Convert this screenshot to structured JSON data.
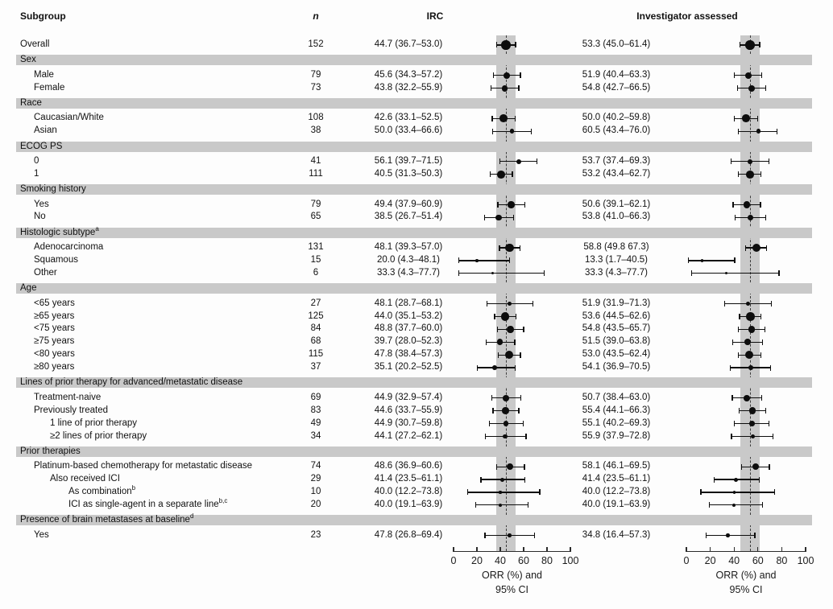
{
  "header": {
    "subgroup": "Subgroup",
    "n": "n",
    "irc": "IRC",
    "investigator": "Investigator assessed"
  },
  "axis": {
    "caption_line1": "ORR (%) and",
    "caption_line2": "95% CI"
  },
  "colors": {
    "section_bar": "#c9c9c9",
    "overall_ci_band": "#c9c9c9",
    "marker": "#0d0d0d",
    "reference_line": "#3c3c3c"
  },
  "chart_data": {
    "type": "forest",
    "panels": [
      "IRC",
      "Investigator assessed"
    ],
    "x_axis": {
      "range": [
        0,
        100
      ],
      "ticks": [
        0,
        20,
        40,
        60,
        80,
        100
      ],
      "label": "ORR (%) and 95% CI"
    },
    "shaded_band_meaning": "Overall 95% CI",
    "reference_line_meaning": "Overall ORR estimate (dashed)",
    "rows": [
      {
        "t": "data",
        "label": "Overall",
        "indent": 0,
        "n": "152",
        "irc": {
          "text": "44.7 (36.7–53.0)",
          "est": 44.7,
          "lo": 36.7,
          "hi": 53.0
        },
        "inv": {
          "text": "53.3 (45.0–61.4)",
          "est": 53.3,
          "lo": 45.0,
          "hi": 61.4
        }
      },
      {
        "t": "section",
        "label": "Sex"
      },
      {
        "t": "data",
        "label": "Male",
        "indent": 1,
        "n": "79",
        "irc": {
          "text": "45.6 (34.3–57.2)",
          "est": 45.6,
          "lo": 34.3,
          "hi": 57.2
        },
        "inv": {
          "text": "51.9 (40.4–63.3)",
          "est": 51.9,
          "lo": 40.4,
          "hi": 63.3
        }
      },
      {
        "t": "data",
        "label": "Female",
        "indent": 1,
        "n": "73",
        "irc": {
          "text": "43.8 (32.2–55.9)",
          "est": 43.8,
          "lo": 32.2,
          "hi": 55.9
        },
        "inv": {
          "text": "54.8 (42.7–66.5)",
          "est": 54.8,
          "lo": 42.7,
          "hi": 66.5
        }
      },
      {
        "t": "section",
        "label": "Race"
      },
      {
        "t": "data",
        "label": "Caucasian/White",
        "indent": 1,
        "n": "108",
        "irc": {
          "text": "42.6 (33.1–52.5)",
          "est": 42.6,
          "lo": 33.1,
          "hi": 52.5
        },
        "inv": {
          "text": "50.0 (40.2–59.8)",
          "est": 50.0,
          "lo": 40.2,
          "hi": 59.8
        }
      },
      {
        "t": "data",
        "label": "Asian",
        "indent": 1,
        "n": "38",
        "irc": {
          "text": "50.0 (33.4–66.6)",
          "est": 50.0,
          "lo": 33.4,
          "hi": 66.6
        },
        "inv": {
          "text": "60.5 (43.4–76.0)",
          "est": 60.5,
          "lo": 43.4,
          "hi": 76.0
        }
      },
      {
        "t": "section",
        "label": "ECOG PS"
      },
      {
        "t": "data",
        "label": "0",
        "indent": 1,
        "n": "41",
        "irc": {
          "text": "56.1 (39.7–71.5)",
          "est": 56.1,
          "lo": 39.7,
          "hi": 71.5
        },
        "inv": {
          "text": "53.7 (37.4–69.3)",
          "est": 53.7,
          "lo": 37.4,
          "hi": 69.3
        }
      },
      {
        "t": "data",
        "label": "1",
        "indent": 1,
        "n": "111",
        "irc": {
          "text": "40.5 (31.3–50.3)",
          "est": 40.5,
          "lo": 31.3,
          "hi": 50.3
        },
        "inv": {
          "text": "53.2 (43.4–62.7)",
          "est": 53.2,
          "lo": 43.4,
          "hi": 62.7
        }
      },
      {
        "t": "section",
        "label": "Smoking history"
      },
      {
        "t": "data",
        "label": "Yes",
        "indent": 1,
        "n": "79",
        "irc": {
          "text": "49.4 (37.9–60.9)",
          "est": 49.4,
          "lo": 37.9,
          "hi": 60.9
        },
        "inv": {
          "text": "50.6 (39.1–62.1)",
          "est": 50.6,
          "lo": 39.1,
          "hi": 62.1
        }
      },
      {
        "t": "data",
        "label": "No",
        "indent": 1,
        "n": "65",
        "irc": {
          "text": "38.5 (26.7–51.4)",
          "est": 38.5,
          "lo": 26.7,
          "hi": 51.4
        },
        "inv": {
          "text": "53.8 (41.0–66.3)",
          "est": 53.8,
          "lo": 41.0,
          "hi": 66.3
        }
      },
      {
        "t": "section",
        "label": "Histologic subtype",
        "sup": "a"
      },
      {
        "t": "data",
        "label": "Adenocarcinoma",
        "indent": 1,
        "n": "131",
        "irc": {
          "text": "48.1 (39.3–57.0)",
          "est": 48.1,
          "lo": 39.3,
          "hi": 57.0
        },
        "inv": {
          "text": "58.8 (49.8 67.3)",
          "est": 58.8,
          "lo": 49.8,
          "hi": 67.3
        }
      },
      {
        "t": "data",
        "label": "Squamous",
        "indent": 1,
        "n": "15",
        "irc": {
          "text": "20.0 (4.3–48.1)",
          "est": 20.0,
          "lo": 4.3,
          "hi": 48.1
        },
        "inv": {
          "text": "13.3 (1.7–40.5)",
          "est": 13.3,
          "lo": 1.7,
          "hi": 40.5
        }
      },
      {
        "t": "data",
        "label": "Other",
        "indent": 1,
        "n": "6",
        "irc": {
          "text": "33.3 (4.3–77.7)",
          "est": 33.3,
          "lo": 4.3,
          "hi": 77.7
        },
        "inv": {
          "text": "33.3 (4.3–77.7)",
          "est": 33.3,
          "lo": 4.3,
          "hi": 77.7
        }
      },
      {
        "t": "section",
        "label": "Age"
      },
      {
        "t": "data",
        "label": "<65 years",
        "indent": 1,
        "n": "27",
        "irc": {
          "text": "48.1 (28.7–68.1)",
          "est": 48.1,
          "lo": 28.7,
          "hi": 68.1
        },
        "inv": {
          "text": "51.9 (31.9–71.3)",
          "est": 51.9,
          "lo": 31.9,
          "hi": 71.3
        }
      },
      {
        "t": "data",
        "label": "≥65 years",
        "indent": 1,
        "n": "125",
        "irc": {
          "text": "44.0 (35.1–53.2)",
          "est": 44.0,
          "lo": 35.1,
          "hi": 53.2
        },
        "inv": {
          "text": "53.6 (44.5–62.6)",
          "est": 53.6,
          "lo": 44.5,
          "hi": 62.6
        }
      },
      {
        "t": "data",
        "label": "<75 years",
        "indent": 1,
        "n": "84",
        "irc": {
          "text": "48.8 (37.7–60.0)",
          "est": 48.8,
          "lo": 37.7,
          "hi": 60.0
        },
        "inv": {
          "text": "54.8 (43.5–65.7)",
          "est": 54.8,
          "lo": 43.5,
          "hi": 65.7
        }
      },
      {
        "t": "data",
        "label": "≥75 years",
        "indent": 1,
        "n": "68",
        "irc": {
          "text": "39.7 (28.0–52.3)",
          "est": 39.7,
          "lo": 28.0,
          "hi": 52.3
        },
        "inv": {
          "text": "51.5 (39.0–63.8)",
          "est": 51.5,
          "lo": 39.0,
          "hi": 63.8
        }
      },
      {
        "t": "data",
        "label": "<80 years",
        "indent": 1,
        "n": "115",
        "irc": {
          "text": "47.8 (38.4–57.3)",
          "est": 47.8,
          "lo": 38.4,
          "hi": 57.3
        },
        "inv": {
          "text": "53.0 (43.5–62.4)",
          "est": 53.0,
          "lo": 43.5,
          "hi": 62.4
        }
      },
      {
        "t": "data",
        "label": "≥80 years",
        "indent": 1,
        "n": "37",
        "irc": {
          "text": "35.1 (20.2–52.5)",
          "est": 35.1,
          "lo": 20.2,
          "hi": 52.5
        },
        "inv": {
          "text": "54.1 (36.9–70.5)",
          "est": 54.1,
          "lo": 36.9,
          "hi": 70.5
        }
      },
      {
        "t": "section",
        "label": "Lines of prior therapy for advanced/metastatic disease"
      },
      {
        "t": "data",
        "label": "Treatment-naive",
        "indent": 1,
        "n": "69",
        "irc": {
          "text": "44.9 (32.9–57.4)",
          "est": 44.9,
          "lo": 32.9,
          "hi": 57.4
        },
        "inv": {
          "text": "50.7 (38.4–63.0)",
          "est": 50.7,
          "lo": 38.4,
          "hi": 63.0
        }
      },
      {
        "t": "data",
        "label": "Previously treated",
        "indent": 1,
        "n": "83",
        "irc": {
          "text": "44.6 (33.7–55.9)",
          "est": 44.6,
          "lo": 33.7,
          "hi": 55.9
        },
        "inv": {
          "text": "55.4 (44.1–66.3)",
          "est": 55.4,
          "lo": 44.1,
          "hi": 66.3
        }
      },
      {
        "t": "data",
        "label": "1 line of prior therapy",
        "indent": 2,
        "n": "49",
        "irc": {
          "text": "44.9 (30.7–59.8)",
          "est": 44.9,
          "lo": 30.7,
          "hi": 59.8
        },
        "inv": {
          "text": "55.1 (40.2–69.3)",
          "est": 55.1,
          "lo": 40.2,
          "hi": 69.3
        }
      },
      {
        "t": "data",
        "label": "≥2 lines of prior therapy",
        "indent": 2,
        "n": "34",
        "irc": {
          "text": "44.1 (27.2–62.1)",
          "est": 44.1,
          "lo": 27.2,
          "hi": 62.1
        },
        "inv": {
          "text": "55.9 (37.9–72.8)",
          "est": 55.9,
          "lo": 37.9,
          "hi": 72.8
        }
      },
      {
        "t": "section",
        "label": "Prior therapies"
      },
      {
        "t": "data",
        "label": "Platinum-based chemotherapy for metastatic disease",
        "indent": 1,
        "n": "74",
        "irc": {
          "text": "48.6 (36.9–60.6)",
          "est": 48.6,
          "lo": 36.9,
          "hi": 60.6
        },
        "inv": {
          "text": "58.1 (46.1–69.5)",
          "est": 58.1,
          "lo": 46.1,
          "hi": 69.5
        }
      },
      {
        "t": "data",
        "label": "Also received ICI",
        "indent": 2,
        "n": "29",
        "irc": {
          "text": "41.4 (23.5–61.1)",
          "est": 41.4,
          "lo": 23.5,
          "hi": 61.1
        },
        "inv": {
          "text": "41.4 (23.5–61.1)",
          "est": 41.4,
          "lo": 23.5,
          "hi": 61.1
        }
      },
      {
        "t": "data",
        "label": "As combination",
        "sup": "b",
        "indent": 3,
        "n": "10",
        "irc": {
          "text": "40.0 (12.2–73.8)",
          "est": 40.0,
          "lo": 12.2,
          "hi": 73.8
        },
        "inv": {
          "text": "40.0 (12.2–73.8)",
          "est": 40.0,
          "lo": 12.2,
          "hi": 73.8
        }
      },
      {
        "t": "data",
        "label": "ICI as single-agent in a separate line",
        "sup": "b,c",
        "indent": 3,
        "n": "20",
        "irc": {
          "text": "40.0 (19.1–63.9)",
          "est": 40.0,
          "lo": 19.1,
          "hi": 63.9
        },
        "inv": {
          "text": "40.0 (19.1–63.9)",
          "est": 40.0,
          "lo": 19.1,
          "hi": 63.9
        }
      },
      {
        "t": "section",
        "label": "Presence of brain metastases at baseline",
        "sup": "d"
      },
      {
        "t": "data",
        "label": "Yes",
        "indent": 1,
        "n": "23",
        "irc": {
          "text": "47.8 (26.8–69.4)",
          "est": 47.8,
          "lo": 26.8,
          "hi": 69.4
        },
        "inv": {
          "text": "34.8 (16.4–57.3)",
          "est": 34.8,
          "lo": 16.4,
          "hi": 57.3
        }
      }
    ]
  }
}
